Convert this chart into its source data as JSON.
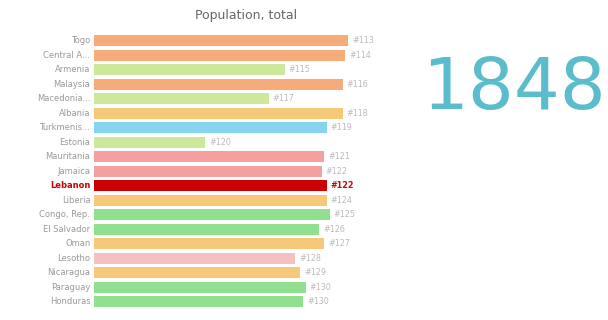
{
  "title": "Population, total",
  "year_label": "1848",
  "year_color": "#5bbccc",
  "background_color": "#ffffff",
  "categories": [
    "Togo",
    "Central A...",
    "Armenia",
    "Malaysia",
    "Macedonia...",
    "Albania",
    "Turkmenis...",
    "Estonia",
    "Mauritania",
    "Jamaica",
    "Lebanon",
    "Liberia",
    "Congo, Rep.",
    "El Salvador",
    "Oman",
    "Lesotho",
    "Nicaragua",
    "Paraguay",
    "Honduras"
  ],
  "ranks": [
    "#113",
    "#114",
    "#115",
    "#116",
    "#117",
    "#118",
    "#119",
    "#120",
    "#121",
    "#122",
    "#122",
    "#124",
    "#125",
    "#126",
    "#127",
    "#128",
    "#129",
    "#130",
    "#130"
  ],
  "bar_colors": [
    "#f5ab7a",
    "#f5ab7a",
    "#cce89a",
    "#f5ab7a",
    "#cce89a",
    "#f5c87a",
    "#87d4f0",
    "#cce89a",
    "#f5a0a0",
    "#f5a0a0",
    "#cc0000",
    "#f5c87a",
    "#90e090",
    "#90e090",
    "#f5c87a",
    "#f5c0c0",
    "#f5c87a",
    "#90e090",
    "#90e090"
  ],
  "values": [
    0.96,
    0.95,
    0.72,
    0.94,
    0.66,
    0.94,
    0.88,
    0.42,
    0.87,
    0.86,
    0.88,
    0.88,
    0.89,
    0.85,
    0.87,
    0.76,
    0.78,
    0.8,
    0.79
  ],
  "highlight_country": "Lebanon",
  "title_fontsize": 9,
  "label_fontsize": 6.0,
  "rank_fontsize": 5.8,
  "year_fontsize": 52,
  "bar_height": 0.75
}
